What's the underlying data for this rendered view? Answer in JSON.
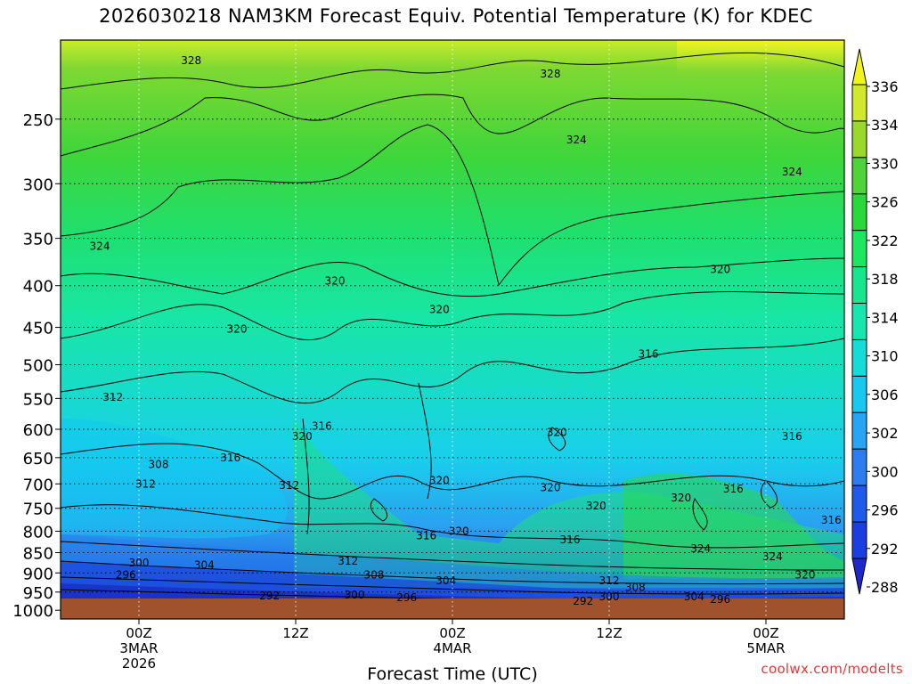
{
  "title": "2026030218 NAM3KM Forecast Equiv. Potential Temperature (K) for KDEC",
  "credit": "coolwx.com/modelts",
  "chart_data": {
    "type": "heatmap",
    "variable": "Equivalent Potential Temperature (K)",
    "xlabel": "Forecast Time (UTC)",
    "x_ticks": [
      {
        "label": "00Z",
        "sub": [
          "3MAR",
          "2026"
        ],
        "hour": 6
      },
      {
        "label": "12Z",
        "sub": [],
        "hour": 18
      },
      {
        "label": "00Z",
        "sub": [
          "4MAR"
        ],
        "hour": 30
      },
      {
        "label": "12Z",
        "sub": [],
        "hour": 42
      },
      {
        "label": "00Z",
        "sub": [
          "5MAR"
        ],
        "hour": 54
      }
    ],
    "xlim_hours": [
      0,
      60
    ],
    "y_pressure_hpa": [
      250,
      300,
      350,
      400,
      450,
      500,
      550,
      600,
      650,
      700,
      750,
      800,
      850,
      900,
      950,
      1000
    ],
    "ylim_hpa": [
      200,
      1025
    ],
    "y_scale": "log-pressure",
    "ground_level_hpa": 985,
    "gridlines": "dotted",
    "colorbar": {
      "levels": [
        288,
        292,
        296,
        300,
        302,
        306,
        310,
        314,
        318,
        322,
        326,
        330,
        334,
        336
      ],
      "colors": [
        "#1c28c8",
        "#1a3ee0",
        "#1f5ae8",
        "#2b7df0",
        "#27a4f4",
        "#19c8f0",
        "#16dcd8",
        "#18e6b0",
        "#18e68c",
        "#1ee660",
        "#2ad83a",
        "#4ed43a",
        "#9ad82e",
        "#d2e82c",
        "#f2f420"
      ],
      "placement": "right"
    },
    "contour_labels": [
      {
        "text": "328",
        "hour": 10.0,
        "p": 212
      },
      {
        "text": "328",
        "hour": 37.5,
        "p": 220
      },
      {
        "text": "324",
        "hour": 39.5,
        "p": 265
      },
      {
        "text": "324",
        "hour": 56.0,
        "p": 290
      },
      {
        "text": "324",
        "hour": 3.0,
        "p": 358
      },
      {
        "text": "320",
        "hour": 21.0,
        "p": 395
      },
      {
        "text": "320",
        "hour": 29.0,
        "p": 428
      },
      {
        "text": "320",
        "hour": 50.5,
        "p": 382
      },
      {
        "text": "320",
        "hour": 13.5,
        "p": 452
      },
      {
        "text": "316",
        "hour": 45.0,
        "p": 485
      },
      {
        "text": "312",
        "hour": 4.0,
        "p": 548
      },
      {
        "text": "316",
        "hour": 20.0,
        "p": 595
      },
      {
        "text": "320",
        "hour": 18.5,
        "p": 612
      },
      {
        "text": "320",
        "hour": 38.0,
        "p": 605
      },
      {
        "text": "316",
        "hour": 56.0,
        "p": 612
      },
      {
        "text": "316",
        "hour": 13.0,
        "p": 650
      },
      {
        "text": "308",
        "hour": 7.5,
        "p": 663
      },
      {
        "text": "312",
        "hour": 6.5,
        "p": 700
      },
      {
        "text": "312",
        "hour": 17.5,
        "p": 703
      },
      {
        "text": "320",
        "hour": 29.0,
        "p": 693
      },
      {
        "text": "320",
        "hour": 37.5,
        "p": 707
      },
      {
        "text": "320",
        "hour": 47.5,
        "p": 728
      },
      {
        "text": "316",
        "hour": 51.5,
        "p": 710
      },
      {
        "text": "320",
        "hour": 41.0,
        "p": 745
      },
      {
        "text": "320",
        "hour": 30.5,
        "p": 800
      },
      {
        "text": "316",
        "hour": 28.0,
        "p": 810
      },
      {
        "text": "316",
        "hour": 39.0,
        "p": 820
      },
      {
        "text": "316",
        "hour": 59.0,
        "p": 775
      },
      {
        "text": "324",
        "hour": 49.0,
        "p": 840
      },
      {
        "text": "324",
        "hour": 54.5,
        "p": 860
      },
      {
        "text": "320",
        "hour": 57.0,
        "p": 905
      },
      {
        "text": "312",
        "hour": 22.0,
        "p": 870
      },
      {
        "text": "308",
        "hour": 24.0,
        "p": 905
      },
      {
        "text": "304",
        "hour": 11.0,
        "p": 880
      },
      {
        "text": "304",
        "hour": 29.5,
        "p": 920
      },
      {
        "text": "312",
        "hour": 42.0,
        "p": 920
      },
      {
        "text": "308",
        "hour": 44.0,
        "p": 938
      },
      {
        "text": "300",
        "hour": 6.0,
        "p": 875
      },
      {
        "text": "296",
        "hour": 5.0,
        "p": 905
      },
      {
        "text": "292",
        "hour": 16.0,
        "p": 960
      },
      {
        "text": "300",
        "hour": 22.5,
        "p": 958
      },
      {
        "text": "296",
        "hour": 26.5,
        "p": 965
      },
      {
        "text": "292",
        "hour": 40.0,
        "p": 975
      },
      {
        "text": "300",
        "hour": 42.0,
        "p": 962
      },
      {
        "text": "304",
        "hour": 48.5,
        "p": 962
      },
      {
        "text": "296",
        "hour": 50.5,
        "p": 970
      }
    ]
  }
}
